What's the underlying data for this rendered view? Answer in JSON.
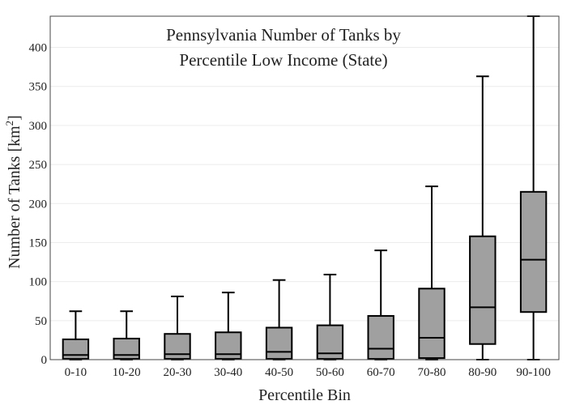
{
  "chart_data": {
    "type": "box",
    "title_lines": [
      "Pennsylvania Number of Tanks by",
      "Percentile Low Income (State)"
    ],
    "xlabel": "Percentile Bin",
    "ylabel_main": "Number of Tanks  [km",
    "ylabel_sup": "2",
    "ylabel_end": "]",
    "ylim": [
      0,
      440
    ],
    "yticks": [
      0,
      50,
      100,
      150,
      200,
      250,
      300,
      350,
      400
    ],
    "grid": true,
    "legend": "none",
    "categories": [
      "0-10",
      "10-20",
      "20-30",
      "30-40",
      "40-50",
      "50-60",
      "60-70",
      "70-80",
      "80-90",
      "90-100"
    ],
    "boxes": [
      {
        "min": 0,
        "q1": 1,
        "median": 6,
        "q3": 26,
        "max": 62
      },
      {
        "min": 0,
        "q1": 1,
        "median": 6,
        "q3": 27,
        "max": 62
      },
      {
        "min": 0,
        "q1": 1,
        "median": 7,
        "q3": 33,
        "max": 81
      },
      {
        "min": 0,
        "q1": 1,
        "median": 7,
        "q3": 35,
        "max": 86
      },
      {
        "min": 0,
        "q1": 1,
        "median": 10,
        "q3": 41,
        "max": 102
      },
      {
        "min": 0,
        "q1": 1,
        "median": 8,
        "q3": 44,
        "max": 109
      },
      {
        "min": 0,
        "q1": 1,
        "median": 14,
        "q3": 56,
        "max": 140
      },
      {
        "min": 0,
        "q1": 2,
        "median": 28,
        "q3": 91,
        "max": 222
      },
      {
        "min": 0,
        "q1": 20,
        "median": 67,
        "q3": 158,
        "max": 363
      },
      {
        "min": 0,
        "q1": 61,
        "median": 128,
        "q3": 215,
        "max": 440
      }
    ],
    "colors": {
      "box_fill": "#a0a0a0",
      "box_edge": "#000000"
    }
  }
}
